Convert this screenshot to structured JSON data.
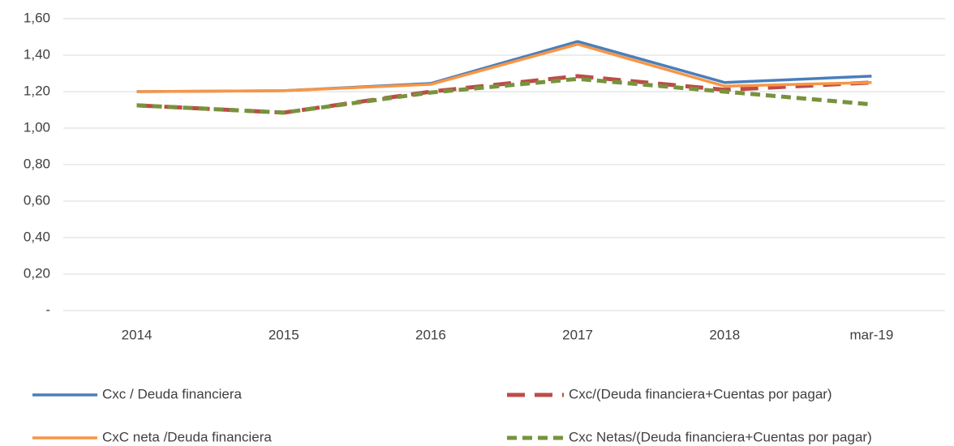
{
  "chart_data": {
    "type": "line",
    "categories": [
      "2014",
      "2015",
      "2016",
      "2017",
      "2018",
      "mar-19"
    ],
    "series": [
      {
        "name": "Cxc / Deuda financiera",
        "color": "#4a7ebb",
        "dash": "solid",
        "values": [
          1.2,
          1.205,
          1.245,
          1.475,
          1.25,
          1.285
        ]
      },
      {
        "name": "Cxc/(Deuda financiera+Cuentas por pagar)",
        "color": "#be4b48",
        "dash": "long",
        "values": [
          1.125,
          1.085,
          1.2,
          1.285,
          1.21,
          1.25
        ]
      },
      {
        "name": "CxC neta /Deuda financiera",
        "color": "#f79646",
        "dash": "solid",
        "values": [
          1.2,
          1.205,
          1.24,
          1.46,
          1.23,
          1.25
        ]
      },
      {
        "name": "Cxc Netas/(Deuda financiera+Cuentas por pagar)",
        "color": "#77933c",
        "dash": "short",
        "values": [
          1.125,
          1.085,
          1.195,
          1.27,
          1.2,
          1.13
        ]
      }
    ],
    "ylim": [
      0,
      1.6
    ],
    "yticks": [
      {
        "value": 0,
        "label": "-"
      },
      {
        "value": 0.2,
        "label": "0,20"
      },
      {
        "value": 0.4,
        "label": "0,40"
      },
      {
        "value": 0.6,
        "label": "0,60"
      },
      {
        "value": 0.8,
        "label": "0,80"
      },
      {
        "value": 1.0,
        "label": "1,00"
      },
      {
        "value": 1.2,
        "label": "1,20"
      },
      {
        "value": 1.4,
        "label": "1,40"
      },
      {
        "value": 1.6,
        "label": "1,60"
      }
    ],
    "grid": true,
    "legend": "bottom"
  }
}
